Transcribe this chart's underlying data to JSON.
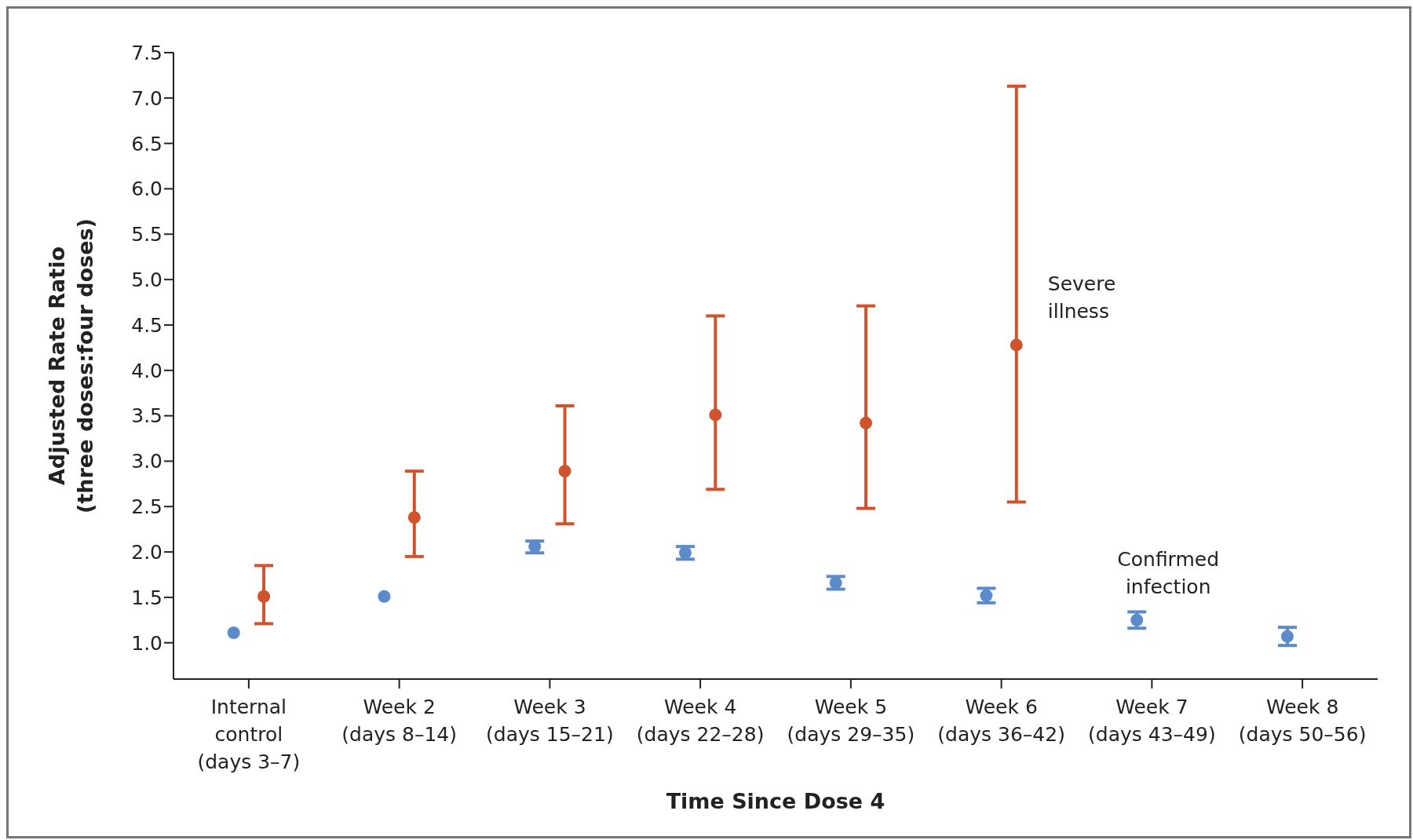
{
  "chart_data": {
    "type": "scatter",
    "xlabel": "Time Since Dose 4",
    "ylabel": "Adjusted Rate Ratio\n(three doses:four doses)",
    "categories": [
      "Internal control (days 3–7)",
      "Week 2 (days 8–14)",
      "Week 3 (days 15–21)",
      "Week 4 (days 22–28)",
      "Week 5 (days 29–35)",
      "Week 6 (days 36–42)",
      "Week 7 (days 43–49)",
      "Week 8 (days 50–56)"
    ],
    "series": [
      {
        "name": "Severe illness",
        "color": "#d0532e",
        "values": [
          1.51,
          2.38,
          2.89,
          3.51,
          3.42,
          4.28,
          null,
          null
        ],
        "errors": [
          [
            1.21,
            1.85
          ],
          [
            1.95,
            2.89
          ],
          [
            2.31,
            3.61
          ],
          [
            2.69,
            4.6
          ],
          [
            2.48,
            4.71
          ],
          [
            2.55,
            7.13
          ],
          null,
          null
        ]
      },
      {
        "name": "Confirmed infection",
        "color": "#5b8bcb",
        "values": [
          1.11,
          1.51,
          2.06,
          1.99,
          1.66,
          1.52,
          1.25,
          1.07
        ],
        "errors": [
          null,
          null,
          [
            1.99,
            2.12
          ],
          [
            1.92,
            2.06
          ],
          [
            1.59,
            1.73
          ],
          [
            1.44,
            1.6
          ],
          [
            1.16,
            1.34
          ],
          [
            0.97,
            1.17
          ]
        ]
      }
    ],
    "ylim": [
      0.6,
      7.5
    ],
    "yticks": [
      {
        "value": 1,
        "label": "1.0"
      },
      {
        "value": 1.5,
        "label": "1.5"
      },
      {
        "value": 2,
        "label": "2.0"
      },
      {
        "value": 2.5,
        "label": "2.5"
      },
      {
        "value": 3,
        "label": "3.0"
      },
      {
        "value": 3.5,
        "label": "3.5"
      },
      {
        "value": 4,
        "label": "4.0"
      },
      {
        "value": 4.5,
        "label": "4.5"
      },
      {
        "value": 5,
        "label": "5.0"
      },
      {
        "value": 5.5,
        "label": "5.5"
      },
      {
        "value": 6,
        "label": "6.0"
      },
      {
        "value": 6.5,
        "label": "6.5"
      },
      {
        "value": 7,
        "label": "7.0"
      },
      {
        "value": 7.5,
        "label": "7.5"
      }
    ],
    "grid": false,
    "legend": false,
    "marker": "circle"
  }
}
